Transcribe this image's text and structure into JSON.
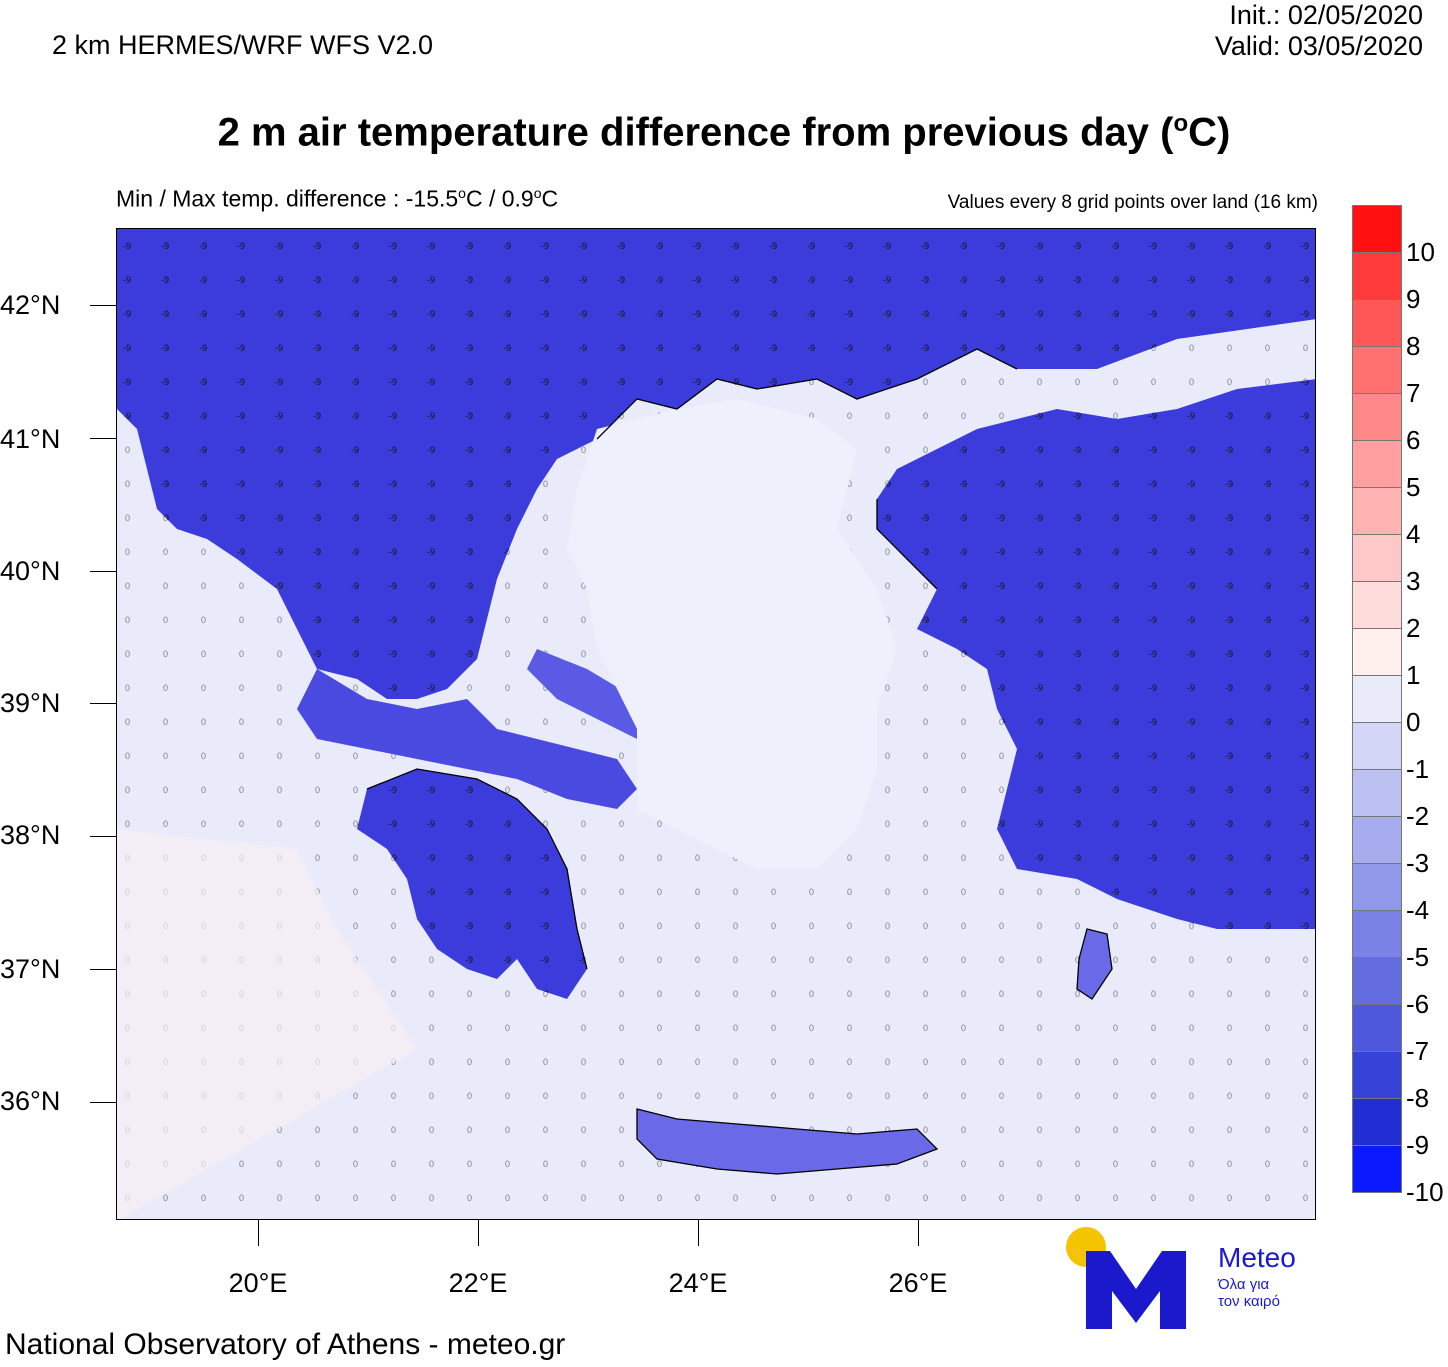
{
  "header": {
    "model": "2 km HERMES/WRF WFS V2.0",
    "init": "Init.:  02/05/2020",
    "valid": "Valid: 03/05/2020",
    "title_main": "2 m air temperature difference from previous day (",
    "title_sup": "o",
    "title_end": "C)",
    "minmax_prefix": "Min / Max temp. difference : -15.5",
    "minmax_mid": "C / 0.9",
    "minmax_end": "C",
    "degree_sup": "o",
    "values_note": "Values every 8 grid points over land (16 km)"
  },
  "map": {
    "lat_labels": [
      "42°N",
      "41°N",
      "40°N",
      "39°N",
      "38°N",
      "37°N",
      "36°N"
    ],
    "lon_labels": [
      "20°E",
      "22°E",
      "24°E",
      "26°E"
    ],
    "background_color": "#e9ebfa",
    "land_color": "#3c3cdc",
    "sea_color": "#e9ebfa"
  },
  "colorbar": {
    "labels": [
      "10",
      "9",
      "8",
      "7",
      "6",
      "5",
      "4",
      "3",
      "2",
      "1",
      "0",
      "-1",
      "-2",
      "-3",
      "-4",
      "-5",
      "-6",
      "-7",
      "-8",
      "-9",
      "-10"
    ],
    "colors": [
      "#ff0f0f",
      "#ff3a3a",
      "#ff5757",
      "#ff7070",
      "#ff8888",
      "#ff9f9f",
      "#ffb4b4",
      "#ffc8c8",
      "#ffdcdc",
      "#fff0ee",
      "#e9ebfa",
      "#d3d6f6",
      "#bdc1f2",
      "#a6aced",
      "#9098e9",
      "#7a82e5",
      "#636de0",
      "#4d58dc",
      "#3743d8",
      "#202ed4",
      "#0a19ff"
    ]
  },
  "logo": {
    "word": "Meteo",
    "subtitle_line1": "Όλα για",
    "subtitle_line2": "τον καιρό",
    "sun_color": "#f5c400",
    "m_color": "#1a1acc"
  },
  "footer": {
    "text": "National Observatory of Athens - meteo.gr"
  }
}
